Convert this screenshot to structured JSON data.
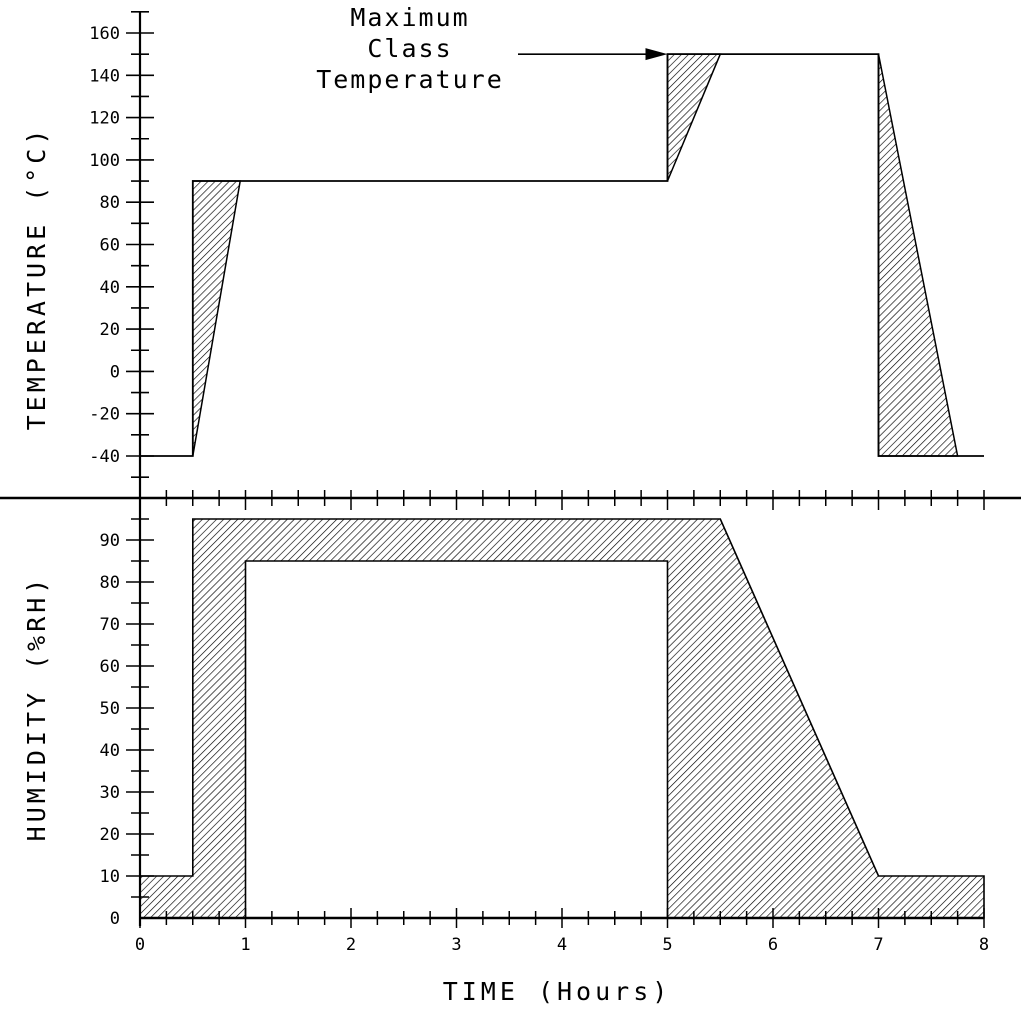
{
  "chart_data": [
    {
      "type": "area",
      "panel": "temperature",
      "ylabel": "TEMPERATURE (°C)",
      "xlim": [
        0,
        8
      ],
      "ylim": [
        -40,
        160
      ],
      "yticks": [
        -40,
        -20,
        0,
        20,
        40,
        60,
        80,
        100,
        120,
        140,
        160
      ],
      "grid": false,
      "annotation": {
        "lines": [
          "Maximum",
          "Class",
          "Temperature"
        ],
        "points_to": [
          5,
          150
        ]
      },
      "series": [
        {
          "style": "line",
          "points": [
            [
              0,
              -40
            ],
            [
              0.5,
              -40
            ],
            [
              0.5,
              90
            ],
            [
              5,
              90
            ],
            [
              5,
              150
            ],
            [
              7,
              150
            ],
            [
              7,
              -40
            ],
            [
              8,
              -40
            ]
          ]
        },
        {
          "style": "hatched-band",
          "polygons": [
            [
              [
                0.5,
                -40
              ],
              [
                0.5,
                90
              ],
              [
                0.95,
                90
              ]
            ],
            [
              [
                5,
                90
              ],
              [
                5,
                150
              ],
              [
                5.5,
                150
              ]
            ],
            [
              [
                7,
                150
              ],
              [
                7,
                -40
              ],
              [
                7.75,
                -40
              ]
            ]
          ]
        }
      ]
    },
    {
      "type": "area",
      "panel": "humidity",
      "ylabel": "HUMIDITY (%RH)",
      "xlabel": "TIME (Hours)",
      "xlim": [
        0,
        8
      ],
      "ylim": [
        0,
        95
      ],
      "yticks": [
        0,
        10,
        20,
        30,
        40,
        50,
        60,
        70,
        80,
        90
      ],
      "xticks": [
        0,
        1,
        2,
        3,
        4,
        5,
        6,
        7,
        8
      ],
      "grid": false,
      "series": [
        {
          "style": "hatched-band",
          "upper": [
            [
              0,
              10
            ],
            [
              0.5,
              10
            ],
            [
              0.5,
              95
            ],
            [
              5.5,
              95
            ],
            [
              7,
              10
            ],
            [
              8,
              10
            ]
          ],
          "lower": [
            [
              0,
              0
            ],
            [
              1,
              0
            ],
            [
              1,
              85
            ],
            [
              5,
              85
            ],
            [
              5,
              0
            ],
            [
              8,
              0
            ]
          ]
        }
      ]
    }
  ]
}
